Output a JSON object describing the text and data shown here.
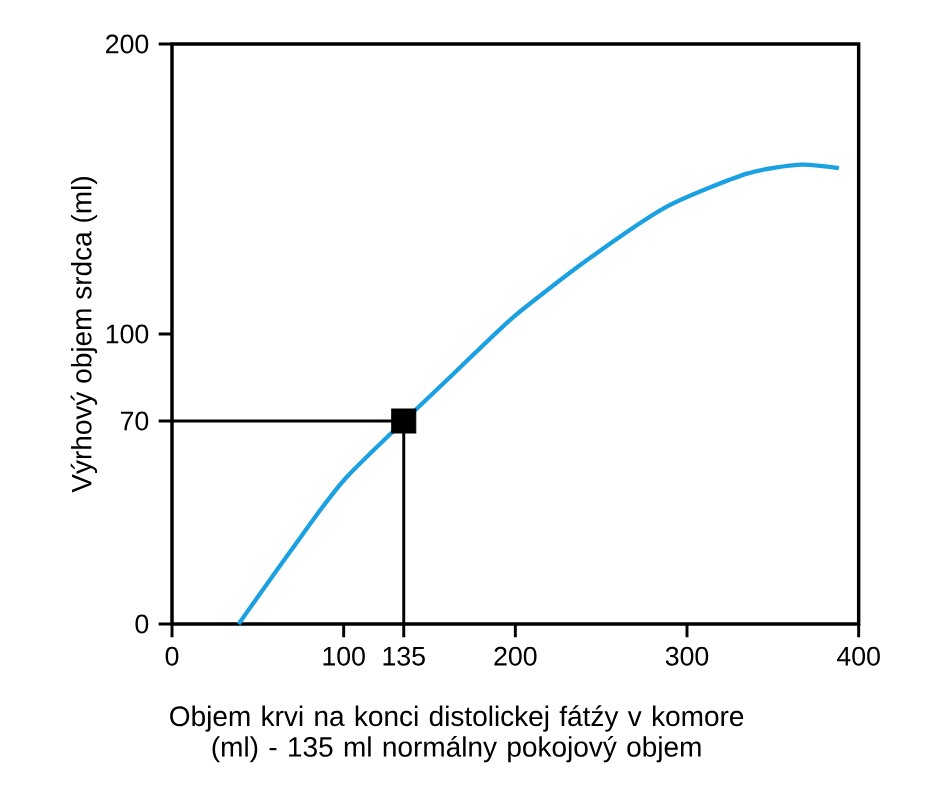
{
  "chart_data": {
    "type": "line",
    "xlabel": "Objem krvi na konci distolickej fátźy v komore (ml) - 135 ml normálny pokojový objem",
    "ylabel": "Výrhový objem srdca (ml)",
    "xlim": [
      0,
      400
    ],
    "ylim": [
      0,
      200
    ],
    "xticks": [
      0,
      100,
      135,
      200,
      300,
      400
    ],
    "yticks": [
      0,
      70,
      100,
      200
    ],
    "grid": false,
    "series": [
      {
        "color": "#1ba1e2",
        "marker": "none",
        "x": [
          38.8,
          70.7,
          101.8,
          164,
          199,
          241.6,
          288.2,
          334.9,
          366,
          388.5
        ],
        "values": [
          0,
          26.5,
          50.7,
          86.3,
          105.9,
          125.4,
          143.9,
          155.3,
          158.4,
          157.2
        ]
      },
      {
        "type": "line",
        "color": "#000000",
        "marker": "none",
        "x": [
          0,
          135,
          135
        ],
        "values": [
          70,
          70,
          0
        ]
      },
      {
        "type": "scatter",
        "color": "#000000",
        "marker": "square",
        "x": [
          135
        ],
        "values": [
          70
        ]
      }
    ]
  }
}
